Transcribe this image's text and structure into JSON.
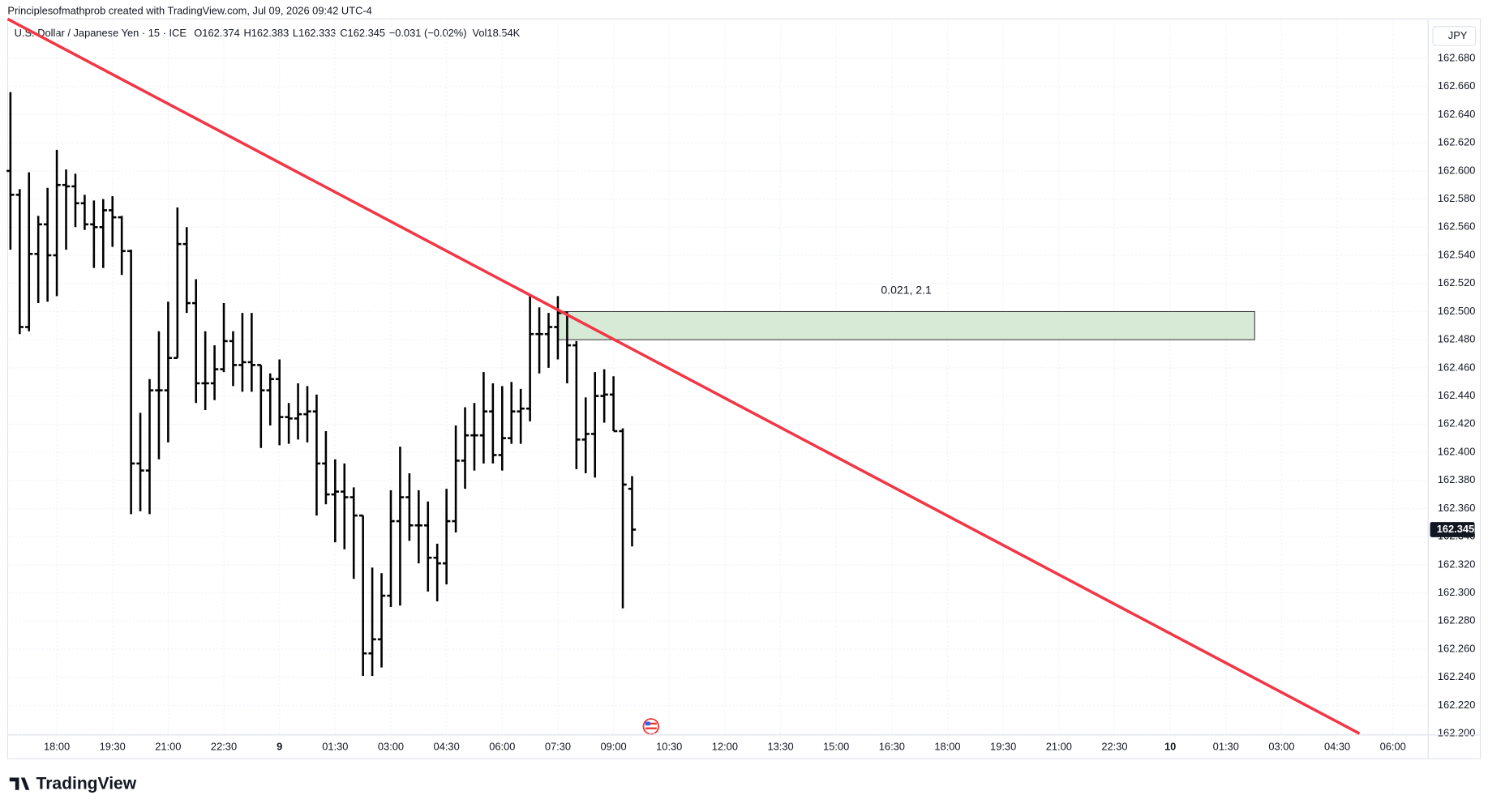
{
  "chart_data": {
    "type": "ohlc",
    "title": "Principlesofmathprob created with TradingView.com, Jul 09, 2026 09:42 UTC-4",
    "series": [
      {
        "name": "U.S. Dollar / Japanese Yen · 15 · ICE",
        "color": "#000000",
        "open": [
          162.6,
          162.583,
          162.489,
          162.541,
          162.562,
          162.54,
          162.59,
          162.589,
          162.577,
          162.562,
          162.56,
          162.572,
          162.567,
          162.543,
          162.392,
          162.387,
          162.444,
          162.444,
          162.467,
          162.548,
          162.506,
          162.449,
          162.449,
          162.459,
          162.479,
          162.462,
          162.464,
          162.462,
          162.444,
          162.452,
          162.425,
          162.424,
          162.427,
          162.429,
          162.392,
          162.37,
          162.372,
          162.368,
          162.355,
          162.257,
          162.267,
          162.298,
          162.351,
          162.368,
          162.348,
          162.348,
          162.325,
          162.321,
          162.351,
          162.394,
          162.412,
          162.412,
          162.429,
          162.398,
          162.41,
          162.429,
          162.431,
          162.484,
          162.484,
          162.489,
          162.499,
          162.476,
          162.409,
          162.413,
          162.44,
          162.441,
          162.415,
          162.374
        ],
        "high": [
          162.656,
          162.587,
          162.599,
          162.568,
          162.588,
          162.615,
          162.601,
          162.598,
          162.583,
          162.579,
          162.58,
          162.582,
          162.568,
          162.544,
          162.428,
          162.452,
          162.486,
          162.507,
          162.574,
          162.56,
          162.523,
          162.486,
          162.476,
          162.506,
          162.486,
          162.499,
          162.499,
          162.462,
          162.456,
          162.466,
          162.435,
          162.449,
          162.447,
          162.441,
          162.415,
          162.395,
          162.392,
          162.375,
          162.355,
          162.318,
          162.314,
          162.373,
          162.404,
          162.385,
          162.373,
          162.365,
          162.335,
          162.374,
          162.419,
          162.432,
          162.435,
          162.457,
          162.449,
          162.447,
          162.45,
          162.445,
          162.511,
          162.503,
          162.499,
          162.511,
          162.5,
          162.479,
          162.439,
          162.457,
          162.459,
          162.454,
          162.417,
          162.383
        ],
        "low": [
          162.544,
          162.484,
          162.486,
          162.506,
          162.507,
          162.511,
          162.544,
          162.56,
          162.558,
          162.531,
          162.531,
          162.546,
          162.526,
          162.356,
          162.358,
          162.356,
          162.395,
          162.407,
          162.467,
          162.499,
          162.435,
          162.43,
          162.437,
          162.457,
          162.447,
          162.443,
          162.443,
          162.403,
          162.419,
          162.405,
          162.406,
          162.409,
          162.407,
          162.355,
          162.363,
          162.336,
          162.331,
          162.31,
          162.241,
          162.241,
          162.247,
          162.29,
          162.291,
          162.337,
          162.321,
          162.301,
          162.294,
          162.306,
          162.343,
          162.374,
          162.387,
          162.392,
          162.392,
          162.387,
          162.406,
          162.406,
          162.422,
          162.456,
          162.46,
          162.466,
          162.449,
          162.388,
          162.385,
          162.382,
          162.421,
          162.415,
          162.289,
          162.333
        ],
        "close": [
          162.583,
          162.489,
          162.541,
          162.562,
          162.54,
          162.59,
          162.589,
          162.577,
          162.562,
          162.56,
          162.572,
          162.567,
          162.543,
          162.392,
          162.387,
          162.444,
          162.444,
          162.467,
          162.548,
          162.506,
          162.449,
          162.449,
          162.459,
          162.479,
          162.462,
          162.464,
          162.462,
          162.444,
          162.452,
          162.425,
          162.424,
          162.427,
          162.429,
          162.392,
          162.37,
          162.372,
          162.368,
          162.355,
          162.257,
          162.267,
          162.298,
          162.351,
          162.368,
          162.348,
          162.348,
          162.325,
          162.321,
          162.351,
          162.394,
          162.412,
          162.412,
          162.429,
          162.398,
          162.41,
          162.429,
          162.431,
          162.484,
          162.484,
          162.489,
          162.499,
          162.476,
          162.409,
          162.413,
          162.44,
          162.441,
          162.415,
          162.377,
          162.345
        ]
      }
    ],
    "legend_prefixes": [
      "O",
      "H",
      "L",
      "C"
    ],
    "change": "−0.031 (−0.02%)",
    "volume": "Vol18.54K",
    "currency": "JPY",
    "brand": "TradingView",
    "xlim": [
      -0.3,
      152.8
    ],
    "ylim": [
      162.199,
      162.708
    ],
    "xticks": [
      {
        "value": 5,
        "label": "18:00"
      },
      {
        "value": 11,
        "label": "19:30"
      },
      {
        "value": 17,
        "label": "21:00"
      },
      {
        "value": 23,
        "label": "22:30"
      },
      {
        "value": 29,
        "label": "9"
      },
      {
        "value": 35,
        "label": "01:30"
      },
      {
        "value": 41,
        "label": "03:00"
      },
      {
        "value": 47,
        "label": "04:30"
      },
      {
        "value": 53,
        "label": "06:00"
      },
      {
        "value": 59,
        "label": "07:30"
      },
      {
        "value": 65,
        "label": "09:00"
      },
      {
        "value": 71,
        "label": "10:30"
      },
      {
        "value": 77,
        "label": "12:00"
      },
      {
        "value": 83,
        "label": "13:30"
      },
      {
        "value": 89,
        "label": "15:00"
      },
      {
        "value": 95,
        "label": "16:30"
      },
      {
        "value": 101,
        "label": "18:00"
      },
      {
        "value": 107,
        "label": "19:30"
      },
      {
        "value": 113,
        "label": "21:00"
      },
      {
        "value": 119,
        "label": "22:30"
      },
      {
        "value": 125,
        "label": "10"
      },
      {
        "value": 131,
        "label": "01:30"
      },
      {
        "value": 137,
        "label": "03:00"
      },
      {
        "value": 143,
        "label": "04:30"
      },
      {
        "value": 149,
        "label": "06:00"
      }
    ],
    "yticks": [
      {
        "value": 162.2,
        "label": "162.200"
      },
      {
        "value": 162.22,
        "label": "162.220"
      },
      {
        "value": 162.24,
        "label": "162.240"
      },
      {
        "value": 162.26,
        "label": "162.260"
      },
      {
        "value": 162.28,
        "label": "162.280"
      },
      {
        "value": 162.3,
        "label": "162.300"
      },
      {
        "value": 162.32,
        "label": "162.320"
      },
      {
        "value": 162.34,
        "label": "162.340"
      },
      {
        "value": 162.36,
        "label": "162.360"
      },
      {
        "value": 162.38,
        "label": "162.380"
      },
      {
        "value": 162.4,
        "label": "162.400"
      },
      {
        "value": 162.42,
        "label": "162.420"
      },
      {
        "value": 162.44,
        "label": "162.440"
      },
      {
        "value": 162.46,
        "label": "162.460"
      },
      {
        "value": 162.48,
        "label": "162.480"
      },
      {
        "value": 162.5,
        "label": "162.500"
      },
      {
        "value": 162.52,
        "label": "162.520"
      },
      {
        "value": 162.54,
        "label": "162.540"
      },
      {
        "value": 162.56,
        "label": "162.560"
      },
      {
        "value": 162.58,
        "label": "162.580"
      },
      {
        "value": 162.6,
        "label": "162.600"
      },
      {
        "value": 162.62,
        "label": "162.620"
      },
      {
        "value": 162.64,
        "label": "162.640"
      },
      {
        "value": 162.66,
        "label": "162.660"
      },
      {
        "value": 162.68,
        "label": "162.680"
      }
    ],
    "grid": true,
    "trendline": {
      "color": "#f23645",
      "x": [
        -0.3,
        145.4
      ],
      "y": [
        162.708,
        162.2
      ]
    },
    "zone": {
      "x": [
        59,
        134.1
      ],
      "y": [
        162.48,
        162.5
      ],
      "color": "#d6ead6",
      "label": "0.021, 2.1"
    }
  }
}
